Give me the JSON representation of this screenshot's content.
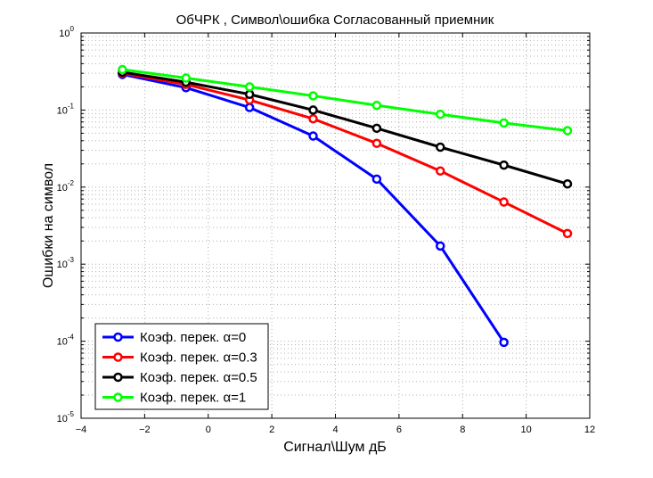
{
  "chart_data": {
    "type": "line",
    "title": "ОбЧРК , Символ\\ошибка Согласованный приемник",
    "xlabel": "Сигнал\\Шум дБ",
    "ylabel": "Ошибки на символ",
    "xlim": [
      -4,
      12
    ],
    "ylim": [
      1e-05,
      1
    ],
    "yscale": "log",
    "grid": true,
    "legend_position": "bottom-left",
    "x_ticks": [
      -4,
      -2,
      0,
      2,
      4,
      6,
      8,
      10,
      12
    ],
    "x_tick_labels": [
      "−4",
      "−2",
      "0",
      "2",
      "4",
      "6",
      "8",
      "10",
      "12"
    ],
    "y_ticks": [
      {
        "value": 1,
        "base": "10",
        "exp": "0"
      },
      {
        "value": 0.1,
        "base": "10",
        "exp": "-1"
      },
      {
        "value": 0.01,
        "base": "10",
        "exp": "-2"
      },
      {
        "value": 0.001,
        "base": "10",
        "exp": "-3"
      },
      {
        "value": 0.0001,
        "base": "10",
        "exp": "-4"
      },
      {
        "value": 1e-05,
        "base": "10",
        "exp": "-5"
      }
    ],
    "series": [
      {
        "name": "Коэф. перек.  α=0",
        "color": "#0000ff",
        "x": [
          -2.7,
          -0.7,
          1.3,
          3.3,
          5.3,
          7.3,
          9.3
        ],
        "values": [
          0.29,
          0.195,
          0.108,
          0.046,
          0.0127,
          0.00172,
          9.66e-05
        ]
      },
      {
        "name": "Коэф. перек.  α=0.3",
        "color": "#ff0000",
        "x": [
          -2.7,
          -0.7,
          1.3,
          3.3,
          5.3,
          7.3,
          9.3,
          11.3
        ],
        "values": [
          0.3,
          0.215,
          0.135,
          0.077,
          0.037,
          0.0162,
          0.0064,
          0.0025
        ]
      },
      {
        "name": "Коэф. перек.  α=0.5",
        "color": "#000000",
        "x": [
          -2.7,
          -0.7,
          1.3,
          3.3,
          5.3,
          7.3,
          9.3,
          11.3
        ],
        "values": [
          0.31,
          0.23,
          0.16,
          0.1,
          0.058,
          0.033,
          0.0193,
          0.011
        ]
      },
      {
        "name": "Коэф. перек.  α=1",
        "color": "#00ff00",
        "x": [
          -2.7,
          -0.7,
          1.3,
          3.3,
          5.3,
          7.3,
          9.3,
          11.3
        ],
        "values": [
          0.335,
          0.26,
          0.2,
          0.153,
          0.115,
          0.088,
          0.068,
          0.054
        ]
      }
    ]
  }
}
